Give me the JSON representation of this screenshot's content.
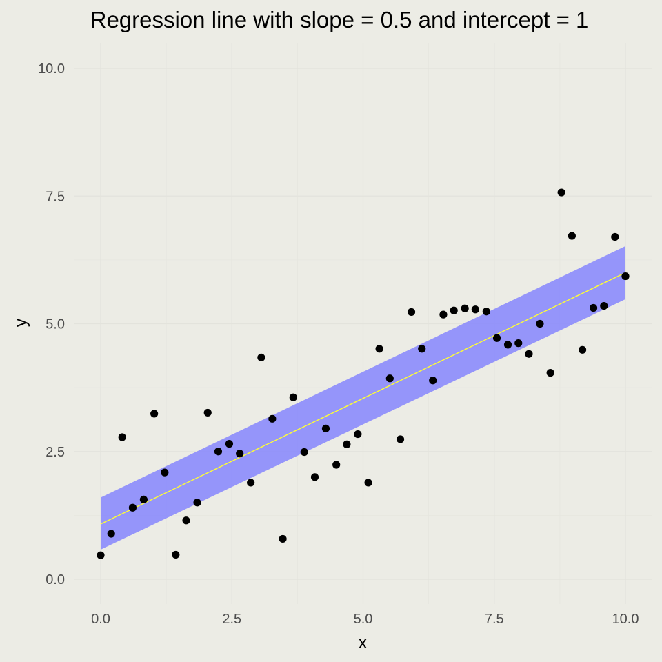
{
  "chart_data": {
    "type": "scatter",
    "title": "Regression line with slope = 0.5 and intercept = 1",
    "xlabel": "x",
    "ylabel": "y",
    "xlim": [
      0,
      10
    ],
    "ylim": [
      0,
      10
    ],
    "x_ticks": [
      "0.0",
      "2.5",
      "5.0",
      "7.5",
      "10.0"
    ],
    "y_ticks": [
      "0.0",
      "2.5",
      "5.0",
      "7.5",
      "10.0"
    ],
    "grid": true,
    "colors": {
      "background": "#ECECE5",
      "points": "#000000",
      "regression_line": "#FFFF33",
      "confidence_band": "#7F7FFF"
    },
    "regression": {
      "slope": 0.5,
      "intercept": 1,
      "x_range": [
        0,
        10
      ],
      "line": [
        [
          0,
          1.08
        ],
        [
          10,
          6.0
        ]
      ],
      "band_lower": [
        [
          0,
          0.58
        ],
        [
          10,
          5.48
        ]
      ],
      "band_upper": [
        [
          0,
          1.6
        ],
        [
          10,
          6.52
        ]
      ]
    },
    "series": [
      {
        "points": [
          [
            0.0,
            0.47
          ],
          [
            0.2,
            0.89
          ],
          [
            0.41,
            2.78
          ],
          [
            0.61,
            1.4
          ],
          [
            0.82,
            1.56
          ],
          [
            1.02,
            3.24
          ],
          [
            1.22,
            2.09
          ],
          [
            1.43,
            0.48
          ],
          [
            1.63,
            1.15
          ],
          [
            1.84,
            1.5
          ],
          [
            2.04,
            3.26
          ],
          [
            2.24,
            2.5
          ],
          [
            2.45,
            2.65
          ],
          [
            2.65,
            2.46
          ],
          [
            2.86,
            1.89
          ],
          [
            3.06,
            4.34
          ],
          [
            3.27,
            3.14
          ],
          [
            3.47,
            0.79
          ],
          [
            3.67,
            3.56
          ],
          [
            3.88,
            2.49
          ],
          [
            4.08,
            2.0
          ],
          [
            4.29,
            2.95
          ],
          [
            4.49,
            2.24
          ],
          [
            4.69,
            2.64
          ],
          [
            4.9,
            2.84
          ],
          [
            5.1,
            1.89
          ],
          [
            5.31,
            4.51
          ],
          [
            5.51,
            3.93
          ],
          [
            5.71,
            2.74
          ],
          [
            5.92,
            5.23
          ],
          [
            6.12,
            4.51
          ],
          [
            6.33,
            3.89
          ],
          [
            6.53,
            5.18
          ],
          [
            6.73,
            5.26
          ],
          [
            6.94,
            5.3
          ],
          [
            7.14,
            5.28
          ],
          [
            7.35,
            5.24
          ],
          [
            7.55,
            4.72
          ],
          [
            7.76,
            4.59
          ],
          [
            7.96,
            4.62
          ],
          [
            8.16,
            4.41
          ],
          [
            8.37,
            5.0
          ],
          [
            8.57,
            4.04
          ],
          [
            8.78,
            7.57
          ],
          [
            8.98,
            6.72
          ],
          [
            9.18,
            4.49
          ],
          [
            9.39,
            5.31
          ],
          [
            9.59,
            5.35
          ],
          [
            9.8,
            6.7
          ],
          [
            10.0,
            5.93
          ]
        ]
      }
    ]
  }
}
